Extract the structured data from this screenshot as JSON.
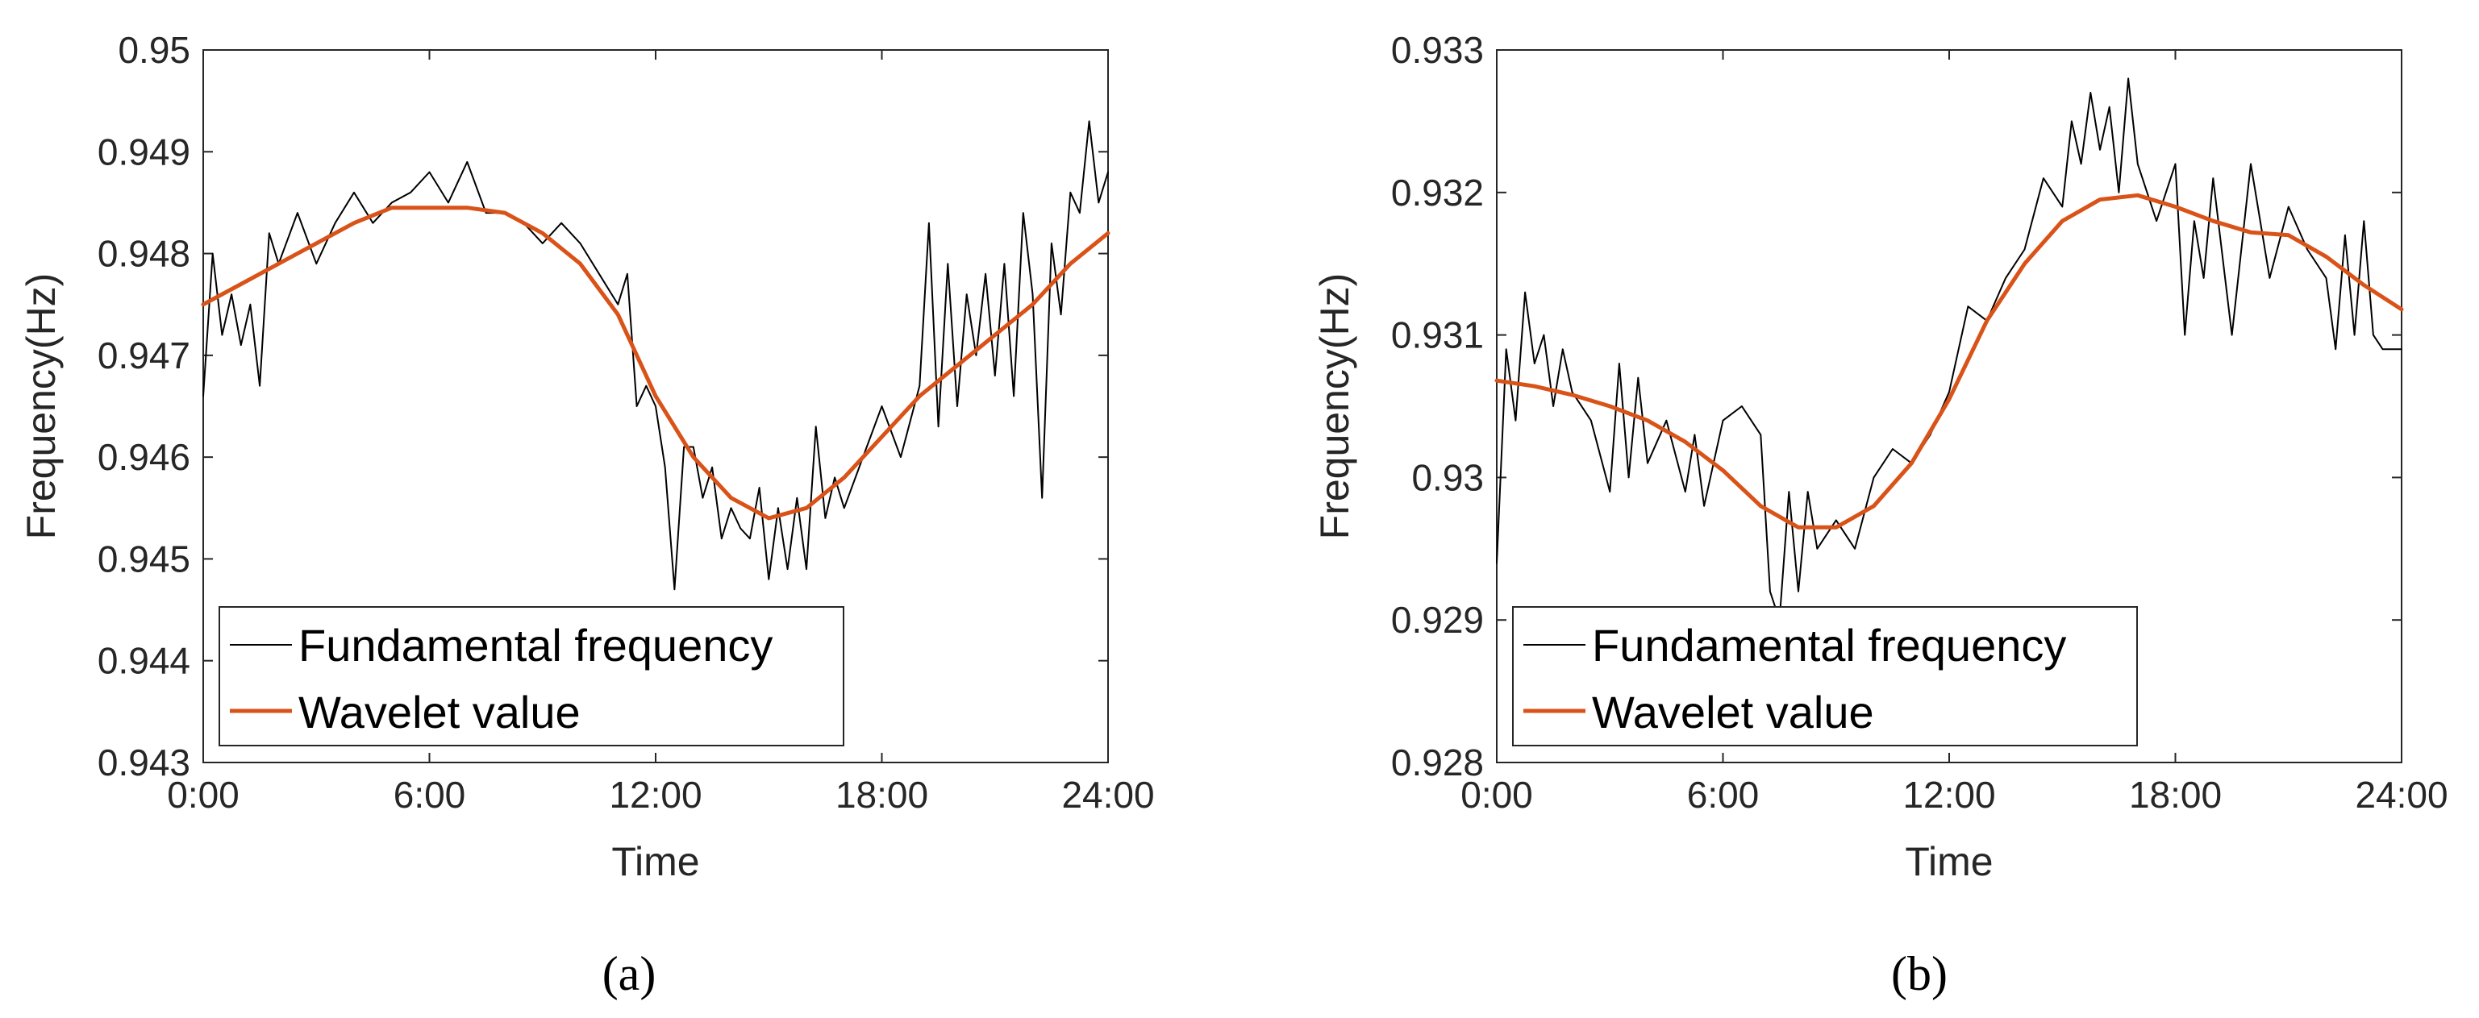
{
  "colors": {
    "raw": "#000000",
    "smooth": "#d95319",
    "axis": "#262626"
  },
  "chart_data": [
    {
      "type": "line",
      "caption": "(a)",
      "xlabel": "Time",
      "ylabel": "Frequency(Hz)",
      "x_tick_labels": [
        "0:00",
        "6:00",
        "12:00",
        "18:00",
        "24:00"
      ],
      "y_tick_labels": [
        "0.943",
        "0.944",
        "0.945",
        "0.946",
        "0.947",
        "0.948",
        "0.949",
        "0.95"
      ],
      "xlim": [
        0,
        24
      ],
      "ylim": [
        0.943,
        0.95
      ],
      "legend": {
        "position": "bottom-left",
        "entries": [
          "Fundamental frequency",
          "Wavelet value"
        ]
      },
      "series": [
        {
          "name": "Fundamental frequency",
          "x": [
            0,
            0.25,
            0.5,
            0.75,
            1,
            1.25,
            1.5,
            1.75,
            2,
            2.5,
            3,
            3.5,
            4,
            4.5,
            5,
            5.5,
            6,
            6.5,
            7,
            7.5,
            8,
            8.5,
            9,
            9.5,
            10,
            10.5,
            11,
            11.25,
            11.5,
            11.75,
            12,
            12.25,
            12.5,
            12.75,
            13,
            13.25,
            13.5,
            13.75,
            14,
            14.25,
            14.5,
            14.75,
            15,
            15.25,
            15.5,
            15.75,
            16,
            16.25,
            16.5,
            16.75,
            17,
            17.5,
            18,
            18.5,
            19,
            19.25,
            19.5,
            19.75,
            20,
            20.25,
            20.5,
            20.75,
            21,
            21.25,
            21.5,
            21.75,
            22,
            22.25,
            22.5,
            22.75,
            23,
            23.25,
            23.5,
            23.75,
            24
          ],
          "y": [
            0.9466,
            0.948,
            0.9472,
            0.9476,
            0.9471,
            0.9475,
            0.9467,
            0.9482,
            0.9479,
            0.9484,
            0.9479,
            0.9483,
            0.9486,
            0.9483,
            0.9485,
            0.9486,
            0.9488,
            0.9485,
            0.9489,
            0.9484,
            0.9484,
            0.9483,
            0.9481,
            0.9483,
            0.9481,
            0.9478,
            0.9475,
            0.9478,
            0.9465,
            0.9467,
            0.9465,
            0.9459,
            0.9447,
            0.9461,
            0.9461,
            0.9456,
            0.9459,
            0.9452,
            0.9455,
            0.9453,
            0.9452,
            0.9457,
            0.9448,
            0.9455,
            0.9449,
            0.9456,
            0.9449,
            0.9463,
            0.9454,
            0.9458,
            0.9455,
            0.946,
            0.9465,
            0.946,
            0.9467,
            0.9483,
            0.9463,
            0.9479,
            0.9465,
            0.9476,
            0.947,
            0.9478,
            0.9468,
            0.9479,
            0.9466,
            0.9484,
            0.9476,
            0.9456,
            0.9481,
            0.9474,
            0.9486,
            0.9484,
            0.9493,
            0.9485,
            0.9488
          ]
        },
        {
          "name": "Wavelet value",
          "x": [
            0,
            1,
            2,
            3,
            4,
            5,
            6,
            7,
            8,
            9,
            10,
            11,
            12,
            13,
            14,
            15,
            16,
            17,
            18,
            19,
            20,
            21,
            22,
            23,
            24
          ],
          "y": [
            0.9475,
            0.9477,
            0.9479,
            0.9481,
            0.9483,
            0.94845,
            0.94845,
            0.94845,
            0.9484,
            0.9482,
            0.9479,
            0.9474,
            0.9466,
            0.946,
            0.9456,
            0.9454,
            0.9455,
            0.9458,
            0.9462,
            0.9466,
            0.9469,
            0.9472,
            0.9475,
            0.9479,
            0.9482
          ]
        }
      ]
    },
    {
      "type": "line",
      "caption": "(b)",
      "xlabel": "Time",
      "ylabel": "Frequency(Hz)",
      "x_tick_labels": [
        "0:00",
        "6:00",
        "12:00",
        "18:00",
        "24:00"
      ],
      "y_tick_labels": [
        "0.928",
        "0.929",
        "0.93",
        "0.931",
        "0.932",
        "0.933"
      ],
      "xlim": [
        0,
        24
      ],
      "ylim": [
        0.928,
        0.933
      ],
      "legend": {
        "position": "bottom-left",
        "entries": [
          "Fundamental frequency",
          "Wavelet value"
        ]
      },
      "series": [
        {
          "name": "Fundamental frequency",
          "x": [
            0,
            0.25,
            0.5,
            0.75,
            1,
            1.25,
            1.5,
            1.75,
            2,
            2.5,
            3,
            3.25,
            3.5,
            3.75,
            4,
            4.5,
            5,
            5.25,
            5.5,
            6,
            6.5,
            7,
            7.25,
            7.5,
            7.75,
            8,
            8.25,
            8.5,
            8.75,
            9,
            9.5,
            10,
            10.5,
            11,
            11.5,
            12,
            12.5,
            13,
            13.5,
            14,
            14.5,
            15,
            15.25,
            15.5,
            15.75,
            16,
            16.25,
            16.5,
            16.75,
            17,
            17.5,
            18,
            18.25,
            18.5,
            18.75,
            19,
            19.5,
            20,
            20.5,
            21,
            21.5,
            22,
            22.25,
            22.5,
            22.75,
            23,
            23.25,
            23.5,
            24
          ],
          "y": [
            0.9294,
            0.9309,
            0.9304,
            0.9313,
            0.9308,
            0.931,
            0.9305,
            0.9309,
            0.9306,
            0.9304,
            0.9299,
            0.9308,
            0.93,
            0.9307,
            0.9301,
            0.9304,
            0.9299,
            0.9303,
            0.9298,
            0.9304,
            0.9305,
            0.9303,
            0.9292,
            0.929,
            0.9299,
            0.9292,
            0.9299,
            0.9295,
            0.9296,
            0.9297,
            0.9295,
            0.93,
            0.9302,
            0.9301,
            0.9303,
            0.9306,
            0.9312,
            0.9311,
            0.9314,
            0.9316,
            0.9321,
            0.9319,
            0.9325,
            0.9322,
            0.9327,
            0.9323,
            0.9326,
            0.932,
            0.9328,
            0.9322,
            0.9318,
            0.9322,
            0.931,
            0.9318,
            0.9314,
            0.9321,
            0.931,
            0.9322,
            0.9314,
            0.9319,
            0.9316,
            0.9314,
            0.9309,
            0.9317,
            0.931,
            0.9318,
            0.931,
            0.9309,
            0.9309
          ]
        },
        {
          "name": "Wavelet value",
          "x": [
            0,
            1,
            2,
            3,
            4,
            5,
            6,
            7,
            8,
            9,
            10,
            11,
            12,
            13,
            14,
            15,
            16,
            17,
            18,
            19,
            20,
            21,
            22,
            23,
            24
          ],
          "y": [
            0.93068,
            0.93064,
            0.93058,
            0.9305,
            0.9304,
            0.93025,
            0.93005,
            0.9298,
            0.92965,
            0.92965,
            0.9298,
            0.9301,
            0.93055,
            0.9311,
            0.9315,
            0.9318,
            0.93195,
            0.93198,
            0.9319,
            0.9318,
            0.93172,
            0.9317,
            0.93155,
            0.93135,
            0.93118
          ]
        }
      ]
    }
  ]
}
